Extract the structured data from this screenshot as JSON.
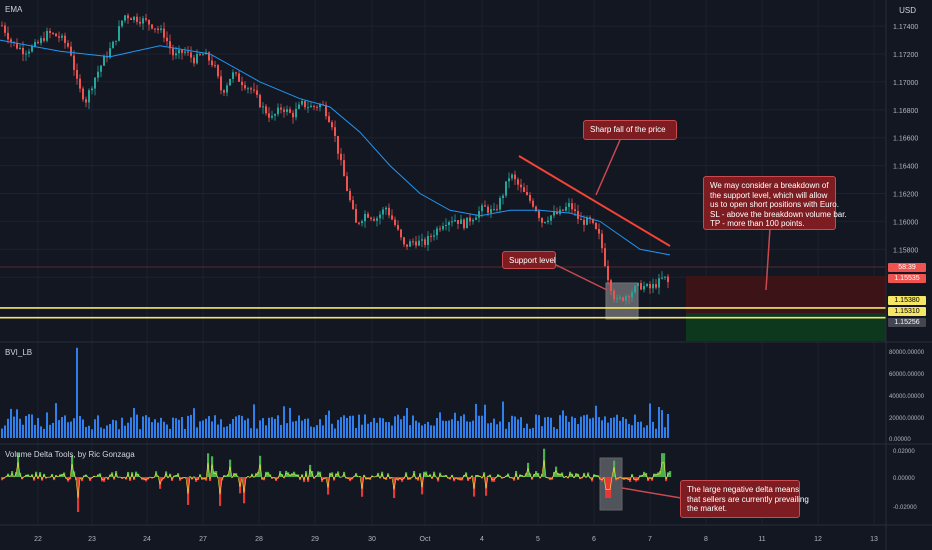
{
  "panels": {
    "main_title": "EMA",
    "bvi_title": "BVI_LB",
    "delta_title": "Volume Delta Tools, by Ric Gonzaga",
    "currency": "USD"
  },
  "price_axis": [
    "1.17400",
    "1.17200",
    "1.17000",
    "1.16800",
    "1.16600",
    "1.16400",
    "1.16200",
    "1.16000",
    "1.15800",
    "1.15600"
  ],
  "bvi_axis": [
    "80000.00000",
    "60000.00000",
    "40000.00000",
    "20000.00000",
    "0.00000"
  ],
  "delta_axis": [
    "0.02000",
    "0.00000",
    "-0.02000"
  ],
  "time_axis": [
    "22",
    "23",
    "24",
    "27",
    "28",
    "29",
    "30",
    "Oct",
    "4",
    "5",
    "6",
    "7",
    "8",
    "11",
    "12",
    "13"
  ],
  "price_tags": {
    "current_time": "58:39",
    "current_price": "1.15535",
    "level_1": "1.15380",
    "level_2": "1.15310",
    "target": "1.15256"
  },
  "annotations": {
    "sharp_fall": "Sharp fall of the price",
    "support": "Support level",
    "idea": "We may consider a breakdown of\nthe support level, which will allow\nus to open short positions with Euro.\nSL - above the breakdown volume bar.\nTP - more than 100 points.",
    "delta_note": "The large negative delta means\nthat sellers are currently prevailing\nthe market."
  },
  "colors": {
    "background": "#131722",
    "up_candle": "#26a69a",
    "down_candle": "#ef5350",
    "ema": "#2196f3",
    "support_line": "#f5e663",
    "volume_bar": "#2f80ed",
    "delta_positive": "#4caf50",
    "delta_negative": "#e53935",
    "delta_line": "#ffeb3b",
    "callout": "#7d1d22",
    "trendline": "#f44336"
  },
  "chart_data": {
    "type": "candlestick",
    "instrument_currency": "USD",
    "xlabel": "",
    "ylabel": "",
    "x_tick_labels": [
      "22",
      "23",
      "24",
      "27",
      "28",
      "29",
      "30",
      "Oct",
      "4",
      "5",
      "6",
      "7",
      "8",
      "11",
      "12",
      "13"
    ],
    "price_range": [
      1.1515,
      1.1753
    ],
    "price_path": [
      [
        0,
        1.1743
      ],
      [
        12,
        1.1728
      ],
      [
        24,
        1.1722
      ],
      [
        36,
        1.1726
      ],
      [
        48,
        1.1735
      ],
      [
        60,
        1.1732
      ],
      [
        70,
        1.1724
      ],
      [
        78,
        1.1696
      ],
      [
        86,
        1.1687
      ],
      [
        94,
        1.1702
      ],
      [
        104,
        1.1716
      ],
      [
        114,
        1.1728
      ],
      [
        124,
        1.1748
      ],
      [
        134,
        1.1746
      ],
      [
        144,
        1.1744
      ],
      [
        154,
        1.174
      ],
      [
        164,
        1.1734
      ],
      [
        174,
        1.1718
      ],
      [
        184,
        1.1722
      ],
      [
        194,
        1.1716
      ],
      [
        204,
        1.172
      ],
      [
        214,
        1.1712
      ],
      [
        222,
        1.1692
      ],
      [
        232,
        1.1706
      ],
      [
        242,
        1.17
      ],
      [
        252,
        1.1694
      ],
      [
        262,
        1.1682
      ],
      [
        272,
        1.1674
      ],
      [
        282,
        1.1682
      ],
      [
        292,
        1.1676
      ],
      [
        302,
        1.1684
      ],
      [
        312,
        1.1682
      ],
      [
        322,
        1.1684
      ],
      [
        332,
        1.167
      ],
      [
        340,
        1.1644
      ],
      [
        348,
        1.162
      ],
      [
        356,
        1.1598
      ],
      [
        366,
        1.1606
      ],
      [
        376,
        1.1602
      ],
      [
        386,
        1.161
      ],
      [
        396,
        1.1596
      ],
      [
        404,
        1.1582
      ],
      [
        414,
        1.1586
      ],
      [
        424,
        1.1584
      ],
      [
        434,
        1.1592
      ],
      [
        444,
        1.16
      ],
      [
        454,
        1.1602
      ],
      [
        464,
        1.1598
      ],
      [
        474,
        1.1604
      ],
      [
        484,
        1.161
      ],
      [
        494,
        1.1606
      ],
      [
        502,
        1.1618
      ],
      [
        510,
        1.1634
      ],
      [
        518,
        1.1626
      ],
      [
        526,
        1.1618
      ],
      [
        534,
        1.1612
      ],
      [
        542,
        1.16
      ],
      [
        550,
        1.1604
      ],
      [
        560,
        1.1606
      ],
      [
        570,
        1.1612
      ],
      [
        580,
        1.16
      ],
      [
        590,
        1.16
      ],
      [
        600,
        1.1588
      ],
      [
        608,
        1.156
      ],
      [
        616,
        1.1542
      ],
      [
        624,
        1.1546
      ],
      [
        632,
        1.155
      ],
      [
        640,
        1.1554
      ],
      [
        650,
        1.1552
      ],
      [
        658,
        1.1556
      ],
      [
        664,
        1.156
      ],
      [
        670,
        1.1554
      ]
    ],
    "ema_path": [
      [
        0,
        1.173
      ],
      [
        60,
        1.1722
      ],
      [
        110,
        1.1718
      ],
      [
        160,
        1.1726
      ],
      [
        210,
        1.172
      ],
      [
        260,
        1.17
      ],
      [
        300,
        1.1688
      ],
      [
        330,
        1.1682
      ],
      [
        360,
        1.1664
      ],
      [
        390,
        1.164
      ],
      [
        420,
        1.162
      ],
      [
        450,
        1.1608
      ],
      [
        480,
        1.1604
      ],
      [
        510,
        1.1608
      ],
      [
        540,
        1.1608
      ],
      [
        570,
        1.1606
      ],
      [
        600,
        1.16
      ],
      [
        620,
        1.159
      ],
      [
        640,
        1.158
      ],
      [
        670,
        1.1576
      ]
    ],
    "support_levels": [
      1.1538,
      1.1531
    ],
    "current_price": 1.15535,
    "target_price": 1.15256,
    "bvi_volume": {
      "range": [
        0,
        85000
      ],
      "spike_value": 83000,
      "typical_range": [
        8000,
        30000
      ]
    },
    "volume_delta": {
      "range": [
        -0.028,
        0.022
      ],
      "notable_negative": -0.015,
      "notable_positive": 0.017
    }
  }
}
